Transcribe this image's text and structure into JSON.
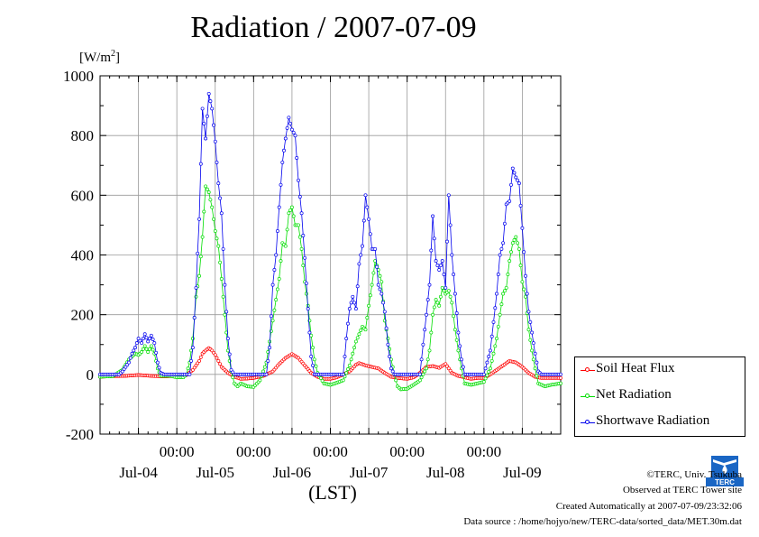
{
  "header": {
    "title": "Radiation / 2007-07-09",
    "unit_prefix": "[W/m",
    "unit_exp": "2",
    "unit_suffix": "]"
  },
  "chart_data": {
    "type": "line",
    "title": "Radiation / 2007-07-09",
    "ylabel": "[W/m2]",
    "xlabel": "(LST)",
    "ylim": [
      -200,
      1000
    ],
    "yticks": [
      -200,
      0,
      200,
      400,
      600,
      800,
      1000
    ],
    "xlim_hours": [
      -24,
      120
    ],
    "x_tick_labels": [
      "00:00",
      "00:00",
      "00:00",
      "00:00",
      "00:00"
    ],
    "x_day_labels": [
      "Jul-04",
      "Jul-05",
      "Jul-06",
      "Jul-07",
      "Jul-08",
      "Jul-09"
    ],
    "grid": true,
    "legend_position": "right",
    "series": [
      {
        "name": "Soil Heat Flux",
        "color": "#ff0000",
        "points": [
          [
            -24,
            -8
          ],
          [
            -20,
            -6
          ],
          [
            -16,
            -5
          ],
          [
            -12,
            -2
          ],
          [
            -8,
            -5
          ],
          [
            -4,
            -7
          ],
          [
            0,
            -5
          ],
          [
            3,
            -2
          ],
          [
            5,
            15
          ],
          [
            7,
            45
          ],
          [
            8,
            70
          ],
          [
            9,
            80
          ],
          [
            10,
            88
          ],
          [
            11,
            80
          ],
          [
            12,
            65
          ],
          [
            13,
            45
          ],
          [
            14,
            25
          ],
          [
            16,
            5
          ],
          [
            18,
            -8
          ],
          [
            20,
            -15
          ],
          [
            22,
            -14
          ],
          [
            24,
            -12
          ],
          [
            27,
            -5
          ],
          [
            30,
            10
          ],
          [
            32,
            35
          ],
          [
            34,
            55
          ],
          [
            36,
            68
          ],
          [
            38,
            55
          ],
          [
            40,
            30
          ],
          [
            42,
            5
          ],
          [
            44,
            -8
          ],
          [
            46,
            -15
          ],
          [
            48,
            -15
          ],
          [
            50,
            -10
          ],
          [
            52,
            0
          ],
          [
            54,
            10
          ],
          [
            56,
            32
          ],
          [
            57,
            38
          ],
          [
            59,
            30
          ],
          [
            61,
            25
          ],
          [
            63,
            20
          ],
          [
            65,
            5
          ],
          [
            67,
            -8
          ],
          [
            69,
            -12
          ],
          [
            72,
            -15
          ],
          [
            74,
            -10
          ],
          [
            76,
            5
          ],
          [
            78,
            25
          ],
          [
            80,
            28
          ],
          [
            82,
            22
          ],
          [
            84,
            35
          ],
          [
            85,
            20
          ],
          [
            86,
            5
          ],
          [
            88,
            -5
          ],
          [
            90,
            -10
          ],
          [
            92,
            -15
          ],
          [
            94,
            -12
          ],
          [
            96,
            -12
          ],
          [
            98,
            0
          ],
          [
            100,
            15
          ],
          [
            102,
            30
          ],
          [
            104,
            45
          ],
          [
            106,
            40
          ],
          [
            108,
            25
          ],
          [
            110,
            5
          ],
          [
            112,
            -8
          ],
          [
            114,
            -12
          ],
          [
            116,
            -12
          ],
          [
            120,
            -12
          ]
        ]
      },
      {
        "name": "Net Radiation",
        "color": "#00dd00",
        "points": [
          [
            -24,
            -8
          ],
          [
            -20,
            -6
          ],
          [
            -17,
            15
          ],
          [
            -15,
            50
          ],
          [
            -13,
            70
          ],
          [
            -12,
            65
          ],
          [
            -11,
            75
          ],
          [
            -10,
            95
          ],
          [
            -9,
            75
          ],
          [
            -8,
            95
          ],
          [
            -7,
            70
          ],
          [
            -6,
            20
          ],
          [
            -5,
            -5
          ],
          [
            -2,
            -5
          ],
          [
            0,
            -10
          ],
          [
            2,
            -10
          ],
          [
            3,
            0
          ],
          [
            4,
            40
          ],
          [
            5,
            120
          ],
          [
            6,
            260
          ],
          [
            7,
            330
          ],
          [
            8,
            460
          ],
          [
            9,
            630
          ],
          [
            10,
            610
          ],
          [
            11,
            560
          ],
          [
            12,
            480
          ],
          [
            13,
            430
          ],
          [
            14,
            320
          ],
          [
            15,
            200
          ],
          [
            16,
            80
          ],
          [
            17,
            10
          ],
          [
            18,
            -30
          ],
          [
            19,
            -40
          ],
          [
            20,
            -30
          ],
          [
            22,
            -40
          ],
          [
            24,
            -42
          ],
          [
            26,
            -20
          ],
          [
            28,
            40
          ],
          [
            30,
            180
          ],
          [
            32,
            320
          ],
          [
            33,
            440
          ],
          [
            34,
            430
          ],
          [
            35,
            540
          ],
          [
            36,
            560
          ],
          [
            37,
            500
          ],
          [
            38,
            500
          ],
          [
            39,
            420
          ],
          [
            40,
            310
          ],
          [
            41,
            230
          ],
          [
            42,
            130
          ],
          [
            43,
            50
          ],
          [
            44,
            5
          ],
          [
            46,
            -30
          ],
          [
            48,
            -35
          ],
          [
            50,
            -28
          ],
          [
            52,
            -20
          ],
          [
            54,
            30
          ],
          [
            56,
            110
          ],
          [
            58,
            160
          ],
          [
            59,
            150
          ],
          [
            60,
            230
          ],
          [
            61,
            300
          ],
          [
            62,
            380
          ],
          [
            63,
            350
          ],
          [
            64,
            310
          ],
          [
            65,
            180
          ],
          [
            66,
            120
          ],
          [
            67,
            50
          ],
          [
            68,
            0
          ],
          [
            69,
            -40
          ],
          [
            70,
            -50
          ],
          [
            72,
            -48
          ],
          [
            74,
            -35
          ],
          [
            76,
            -20
          ],
          [
            78,
            20
          ],
          [
            79,
            80
          ],
          [
            80,
            200
          ],
          [
            81,
            250
          ],
          [
            82,
            230
          ],
          [
            83,
            290
          ],
          [
            84,
            270
          ],
          [
            85,
            280
          ],
          [
            86,
            240
          ],
          [
            87,
            150
          ],
          [
            88,
            80
          ],
          [
            89,
            20
          ],
          [
            90,
            -30
          ],
          [
            92,
            -35
          ],
          [
            94,
            -30
          ],
          [
            96,
            -25
          ],
          [
            98,
            20
          ],
          [
            100,
            120
          ],
          [
            101,
            200
          ],
          [
            102,
            270
          ],
          [
            103,
            290
          ],
          [
            104,
            380
          ],
          [
            105,
            440
          ],
          [
            106,
            460
          ],
          [
            107,
            420
          ],
          [
            108,
            310
          ],
          [
            109,
            260
          ],
          [
            110,
            150
          ],
          [
            111,
            80
          ],
          [
            112,
            20
          ],
          [
            113,
            -30
          ],
          [
            115,
            -40
          ],
          [
            117,
            -35
          ],
          [
            120,
            -30
          ]
        ]
      },
      {
        "name": "Shortwave Radiation",
        "color": "#0000ee",
        "points": [
          [
            -24,
            0
          ],
          [
            -18,
            0
          ],
          [
            -17,
            10
          ],
          [
            -15,
            40
          ],
          [
            -14,
            70
          ],
          [
            -13,
            90
          ],
          [
            -12,
            120
          ],
          [
            -11,
            105
          ],
          [
            -10,
            135
          ],
          [
            -9,
            110
          ],
          [
            -8,
            130
          ],
          [
            -7,
            105
          ],
          [
            -6,
            40
          ],
          [
            -5,
            5
          ],
          [
            -4,
            0
          ],
          [
            0,
            0
          ],
          [
            4,
            0
          ],
          [
            5,
            90
          ],
          [
            6,
            290
          ],
          [
            7,
            520
          ],
          [
            8,
            890
          ],
          [
            9,
            790
          ],
          [
            10,
            940
          ],
          [
            11,
            890
          ],
          [
            12,
            780
          ],
          [
            13,
            640
          ],
          [
            14,
            540
          ],
          [
            15,
            300
          ],
          [
            16,
            120
          ],
          [
            17,
            15
          ],
          [
            18,
            0
          ],
          [
            24,
            0
          ],
          [
            28,
            0
          ],
          [
            29,
            90
          ],
          [
            30,
            300
          ],
          [
            31,
            400
          ],
          [
            32,
            560
          ],
          [
            33,
            710
          ],
          [
            34,
            790
          ],
          [
            35,
            860
          ],
          [
            36,
            820
          ],
          [
            37,
            800
          ],
          [
            38,
            650
          ],
          [
            39,
            540
          ],
          [
            40,
            390
          ],
          [
            41,
            220
          ],
          [
            42,
            60
          ],
          [
            43,
            0
          ],
          [
            52,
            0
          ],
          [
            53,
            120
          ],
          [
            54,
            220
          ],
          [
            55,
            260
          ],
          [
            56,
            220
          ],
          [
            57,
            370
          ],
          [
            58,
            430
          ],
          [
            59,
            600
          ],
          [
            60,
            520
          ],
          [
            61,
            420
          ],
          [
            62,
            420
          ],
          [
            63,
            300
          ],
          [
            64,
            270
          ],
          [
            65,
            210
          ],
          [
            66,
            100
          ],
          [
            67,
            20
          ],
          [
            68,
            0
          ],
          [
            76,
            0
          ],
          [
            77,
            100
          ],
          [
            78,
            200
          ],
          [
            79,
            300
          ],
          [
            80,
            530
          ],
          [
            81,
            380
          ],
          [
            82,
            350
          ],
          [
            83,
            380
          ],
          [
            84,
            290
          ],
          [
            85,
            600
          ],
          [
            86,
            400
          ],
          [
            87,
            270
          ],
          [
            88,
            140
          ],
          [
            89,
            50
          ],
          [
            90,
            0
          ],
          [
            96,
            0
          ],
          [
            98,
            80
          ],
          [
            100,
            270
          ],
          [
            101,
            400
          ],
          [
            102,
            440
          ],
          [
            103,
            570
          ],
          [
            104,
            580
          ],
          [
            105,
            690
          ],
          [
            106,
            660
          ],
          [
            107,
            640
          ],
          [
            108,
            490
          ],
          [
            109,
            330
          ],
          [
            110,
            210
          ],
          [
            111,
            140
          ],
          [
            112,
            70
          ],
          [
            113,
            10
          ],
          [
            114,
            0
          ],
          [
            120,
            0
          ]
        ]
      }
    ]
  },
  "credits": {
    "copyright": "©TERC, Univ. Tsukuba",
    "observed": "Observed at TERC Tower site",
    "created": "Created Automatically at 2007-07-09/23:32:06",
    "source": "Data source : /home/hojyo/new/TERC-data/sorted_data/MET.30m.dat"
  },
  "logo": {
    "name": "terc-logo",
    "text": "TERC",
    "color": "#1a66c4"
  }
}
